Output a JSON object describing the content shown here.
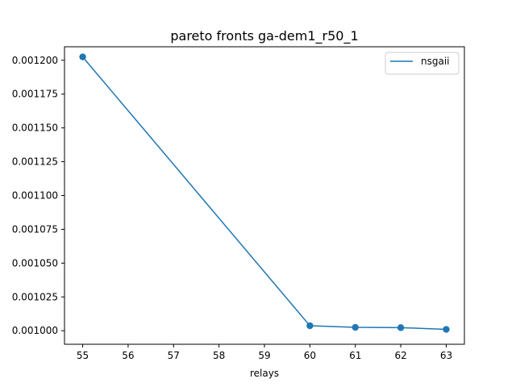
{
  "chart_data": {
    "type": "line",
    "title": "pareto fronts ga-dem1_r50_1",
    "xlabel": "relays",
    "ylabel": "",
    "xlim": [
      54.6,
      63.4
    ],
    "ylim": [
      0.00099,
      0.00121
    ],
    "x_ticks": [
      55,
      56,
      57,
      58,
      59,
      60,
      61,
      62,
      63
    ],
    "x_tick_labels": [
      "55",
      "56",
      "57",
      "58",
      "59",
      "60",
      "61",
      "62",
      "63"
    ],
    "y_ticks": [
      0.001,
      0.001025,
      0.00105,
      0.001075,
      0.0011,
      0.001125,
      0.00115,
      0.001175,
      0.0012
    ],
    "y_tick_labels": [
      "0.001000",
      "0.001025",
      "0.001050",
      "0.001075",
      "0.001100",
      "0.001125",
      "0.001150",
      "0.001175",
      "0.001200"
    ],
    "grid": false,
    "legend_position": "upper-right",
    "series": [
      {
        "name": "nsgaii",
        "color": "#1f77b4",
        "x": [
          55,
          60,
          61,
          62,
          63
        ],
        "y": [
          0.0012025,
          0.0010037,
          0.0010025,
          0.0010023,
          0.001001
        ]
      }
    ]
  }
}
